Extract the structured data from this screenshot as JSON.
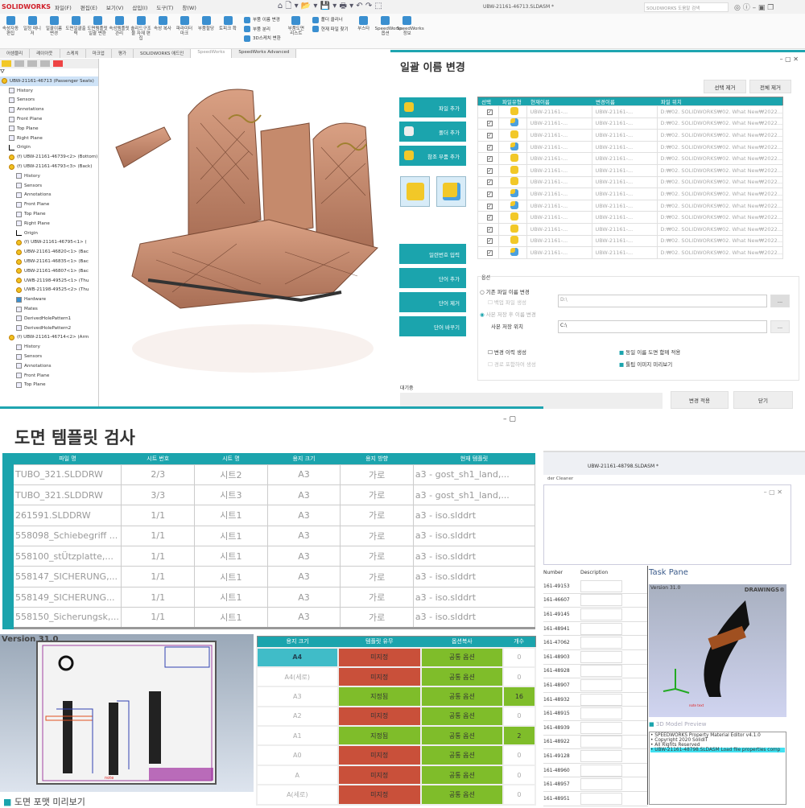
{
  "app": {
    "logo": "SOLIDWORKS",
    "title": "UBW-21161-46713.SLDASM *",
    "search_placeholder": "SOLIDWORKS 도움말 검색",
    "menu": [
      "파일(F)",
      "편집(E)",
      "보기(V)",
      "삽입(I)",
      "도구(T)",
      "창(W)"
    ],
    "ribbon": [
      "속성자동 편집",
      "일정 매니저",
      "일괄이름 변경",
      "도면일괄출력",
      "도면템플릿 일괄 변환",
      "속성템플릿 관리",
      "솔리드구조물 자재 편집",
      "속성 복사",
      "파라미터 마크",
      "부품할당",
      "토피크 확"
    ],
    "ribbon_small": [
      "부품 이름 변경",
      "부품 분리",
      "3D스케치 변환"
    ],
    "ribbon2": [
      "부품도면 리스트"
    ],
    "ribbon_small2": [
      "폴더 클리너",
      "현재 파일 찾기"
    ],
    "ribbon3": [
      "부스타",
      "SpeedWorks 옵션",
      "SpeedWorks 정보"
    ],
    "tabs": [
      "어셈블리",
      "레이아웃",
      "스케치",
      "마크업",
      "평가",
      "SOLIDWORKS 애드인",
      "SpeedWorks",
      "SpeedWorks Advanced"
    ],
    "active_tab": "SpeedWorks"
  },
  "tree": [
    {
      "t": "UBW-21161-46713 (Passenger Seats)",
      "i": "c",
      "l": 0,
      "sel": true
    },
    {
      "t": "History",
      "i": "",
      "l": 1
    },
    {
      "t": "Sensors",
      "i": "",
      "l": 1
    },
    {
      "t": "Annotations",
      "i": "",
      "l": 1
    },
    {
      "t": "Front Plane",
      "i": "",
      "l": 1
    },
    {
      "t": "Top Plane",
      "i": "",
      "l": 1
    },
    {
      "t": "Right Plane",
      "i": "",
      "l": 1
    },
    {
      "t": "Origin",
      "i": "o",
      "l": 1
    },
    {
      "t": "(f) UBW-21161-46739<2> (Bottom)",
      "i": "c",
      "l": 1
    },
    {
      "t": "(f) UBW-21161-46793<3> (Back)",
      "i": "c",
      "l": 1
    },
    {
      "t": "History",
      "i": "",
      "l": 2
    },
    {
      "t": "Sensors",
      "i": "",
      "l": 2
    },
    {
      "t": "Annotations",
      "i": "",
      "l": 2
    },
    {
      "t": "Front Plane",
      "i": "",
      "l": 2
    },
    {
      "t": "Top Plane",
      "i": "",
      "l": 2
    },
    {
      "t": "Right Plane",
      "i": "",
      "l": 2
    },
    {
      "t": "Origin",
      "i": "o",
      "l": 2
    },
    {
      "t": "(f) UBW-21161-46795<1> (",
      "i": "c",
      "l": 2
    },
    {
      "t": "UBW-21161-46820<1> (Bac",
      "i": "c",
      "l": 2
    },
    {
      "t": "UBW-21161-46835<1> (Bac",
      "i": "c",
      "l": 2
    },
    {
      "t": "UBW-21161-46807<1> (Bac",
      "i": "c",
      "l": 2
    },
    {
      "t": "UWB-21198-49525<1> (Thu",
      "i": "c",
      "l": 2
    },
    {
      "t": "UWB-21198-49525<2> (Thu",
      "i": "c",
      "l": 2
    },
    {
      "t": "Hardware",
      "i": "f",
      "l": 2
    },
    {
      "t": "Mates",
      "i": "",
      "l": 2
    },
    {
      "t": "DerivedHolePattern1",
      "i": "",
      "l": 2
    },
    {
      "t": "DerivedHolePattern2",
      "i": "",
      "l": 2
    },
    {
      "t": "(f) UBW-21161-46714<2> (Arm",
      "i": "c",
      "l": 1
    },
    {
      "t": "History",
      "i": "",
      "l": 2
    },
    {
      "t": "Sensors",
      "i": "",
      "l": 2
    },
    {
      "t": "Annotations",
      "i": "",
      "l": 2
    },
    {
      "t": "Front Plane",
      "i": "",
      "l": 2
    },
    {
      "t": "Top Plane",
      "i": "",
      "l": 2
    }
  ],
  "rename": {
    "title": "일괄 이름 변경",
    "remove_selected": "선택 제거",
    "remove_all": "전체 제거",
    "buttons": [
      "파일 추가",
      "폴더 추가",
      "참조 부품 추가"
    ],
    "word_buttons": [
      "일련번호 입력",
      "단어 추가",
      "단어 제거",
      "단어 바꾸기"
    ],
    "columns": [
      "선택",
      "파일유형",
      "현재이름",
      "변경이름",
      "파일 위치"
    ],
    "rows": [
      {
        "type": "part",
        "cur": "UBW-21161-...",
        "new": "UBW-21161-...",
        "path": "D:₩02. SOLIDWORKS₩02. What New₩2022..."
      },
      {
        "type": "asm",
        "cur": "UBW-21161-...",
        "new": "UBW-21161-...",
        "path": "D:₩02. SOLIDWORKS₩02. What New₩2022..."
      },
      {
        "type": "part",
        "cur": "UBW-21161-...",
        "new": "UBW-21161-...",
        "path": "D:₩02. SOLIDWORKS₩02. What New₩2022..."
      },
      {
        "type": "asm",
        "cur": "UBW-21161-...",
        "new": "UBW-21161-...",
        "path": "D:₩02. SOLIDWORKS₩02. What New₩2022..."
      },
      {
        "type": "part",
        "cur": "UBW-21161-...",
        "new": "UBW-21161-...",
        "path": "D:₩02. SOLIDWORKS₩02. What New₩2022..."
      },
      {
        "type": "part",
        "cur": "UBW-21161-...",
        "new": "UBW-21161-...",
        "path": "D:₩02. SOLIDWORKS₩02. What New₩2022..."
      },
      {
        "type": "part",
        "cur": "UBW-21161-...",
        "new": "UBW-21161-...",
        "path": "D:₩02. SOLIDWORKS₩02. What New₩2022..."
      },
      {
        "type": "asm",
        "cur": "UBW-21161-...",
        "new": "UBW-21161-...",
        "path": "D:₩02. SOLIDWORKS₩02. What New₩2022..."
      },
      {
        "type": "asm",
        "cur": "UBW-21161-...",
        "new": "UBW-21161-...",
        "path": "D:₩02. SOLIDWORKS₩02. What New₩2022..."
      },
      {
        "type": "part",
        "cur": "UBW-21161-...",
        "new": "UBW-21161-...",
        "path": "D:₩02. SOLIDWORKS₩02. What New₩2022..."
      },
      {
        "type": "part",
        "cur": "UBW-21161-...",
        "new": "UBW-21161-...",
        "path": "D:₩02. SOLIDWORKS₩02. What New₩2022..."
      },
      {
        "type": "part",
        "cur": "UBW-21161-...",
        "new": "UBW-21161-...",
        "path": "D:₩02. SOLIDWORKS₩02. What New₩2022..."
      },
      {
        "type": "asm",
        "cur": "UBW-21161-...",
        "new": "UBW-21161-...",
        "path": "D:₩02. SOLIDWORKS₩02. What New₩2022..."
      }
    ],
    "options_label": "옵션",
    "opt_rename_existing": "기존 파일 이름 변경",
    "opt_backup": "백업 파일 생성",
    "backup_path": "D:\\",
    "opt_copy_rename": "사본 저장 후 이름 변경",
    "copy_location_label": "사본 저장 위치",
    "copy_path": "C:\\",
    "browse": "...",
    "opt_history": "변경 이력 생성",
    "opt_include_path": "경로 포함하여 생성",
    "opt_same_drawing": "동일 이름 도면 함께 적용",
    "opt_tooltip": "툴팁 이미지 미리보기",
    "queue_label": "대기중",
    "apply": "변경 적용",
    "close": "닫기"
  },
  "template": {
    "title": "도면 템플릿 검사",
    "columns": [
      "파일 명",
      "시트 번호",
      "시트 명",
      "용지 크기",
      "용지 방향",
      "현재 템플릿"
    ],
    "rows": [
      [
        "TUBO_321.SLDDRW",
        "2/3",
        "시트2",
        "A3",
        "가로",
        "a3 - gost_sh1_land,..."
      ],
      [
        "TUBO_321.SLDDRW",
        "3/3",
        "시트3",
        "A3",
        "가로",
        "a3 - gost_sh1_land,..."
      ],
      [
        "261591.SLDDRW",
        "1/1",
        "시트1",
        "A3",
        "가로",
        "a3 - iso.slddrt"
      ],
      [
        "558098_Schiebegriff ...",
        "1/1",
        "시트1",
        "A3",
        "가로",
        "a3 - iso.slddrt"
      ],
      [
        "558100_stÜtzplatte,...",
        "1/1",
        "시트1",
        "A3",
        "가로",
        "a3 - iso.slddrt"
      ],
      [
        "558147_SICHERUNG,...",
        "1/1",
        "시트1",
        "A3",
        "가로",
        "a3 - iso.slddrt"
      ],
      [
        "558149_SICHERUNG...",
        "1/1",
        "시트1",
        "A3",
        "가로",
        "a3 - iso.slddrt"
      ],
      [
        "558150_Sicherungsk,...",
        "1/1",
        "시트1",
        "A3",
        "가로",
        "a3 - iso.slddrt"
      ]
    ],
    "preview_version": "Version 31.0",
    "preview_label": "도면 포맷 미리보기",
    "size_columns": [
      "용지 크기",
      "템플릿 유무",
      "옵션복사",
      "개수"
    ],
    "size_rows": [
      {
        "size": "A4",
        "tpl": "미지정",
        "opt": "공통 옵션",
        "count": "0",
        "ok": false,
        "sel": true
      },
      {
        "size": "A4(세로)",
        "tpl": "미지정",
        "opt": "공통 옵션",
        "count": "0",
        "ok": false
      },
      {
        "size": "A3",
        "tpl": "지정됨",
        "opt": "공통 옵션",
        "count": "16",
        "ok": true
      },
      {
        "size": "A2",
        "tpl": "미지정",
        "opt": "공통 옵션",
        "count": "0",
        "ok": false
      },
      {
        "size": "A1",
        "tpl": "지정됨",
        "opt": "공통 옵션",
        "count": "2",
        "ok": true
      },
      {
        "size": "A0",
        "tpl": "미지정",
        "opt": "공통 옵션",
        "count": "0",
        "ok": false
      },
      {
        "size": "A",
        "tpl": "미지정",
        "opt": "공통 옵션",
        "count": "0",
        "ok": false
      },
      {
        "size": "A(세로)",
        "tpl": "미지정",
        "opt": "공통 옵션",
        "count": "0",
        "ok": false
      }
    ]
  },
  "editor": {
    "title": "UBW-21161-48798.SLDASM *",
    "cleaner": "der Cleaner",
    "col_number": "Number",
    "col_desc": "Description",
    "numbers": [
      "161-49153",
      "161-46607",
      "161-49145",
      "161-48941",
      "161-47062",
      "161-48903",
      "161-48928",
      "161-48907",
      "161-48932",
      "161-48915",
      "161-48939",
      "161-48922",
      "161-49128",
      "161-48960",
      "161-48957",
      "161-48951"
    ],
    "task_pane": "Task Pane",
    "version": "Version 31.0",
    "brand": "DRAWINGS®",
    "preview_label": "3D Model Preview",
    "log": [
      "SPEEDWORKS Property Material Editor v4.1.0",
      "Copyright 2020 SolidIT",
      "All Rights Reserved",
      "UBW-21161-48798.SLDASM  Load  file  properties  comp"
    ]
  },
  "colors": {
    "teal": "#1ba4ad",
    "red": "#c9503a",
    "green": "#7fbd2a",
    "seat": "#c58a6c"
  }
}
